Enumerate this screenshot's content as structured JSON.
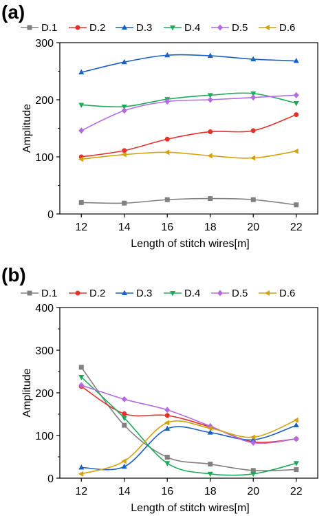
{
  "chart_data": [
    {
      "type": "line",
      "panel_label": "(a)",
      "xlabel": "Length of stitch wires[m]",
      "ylabel": "Amplitude",
      "x": [
        12,
        14,
        16,
        18,
        20,
        22
      ],
      "xticks": [
        "12",
        "14",
        "16",
        "18",
        "20",
        "22"
      ],
      "yticks": [
        "0",
        "100",
        "200",
        "300"
      ],
      "xlim": [
        11,
        23
      ],
      "ylim": [
        0,
        300
      ],
      "grid": false,
      "legend": "top",
      "series": [
        {
          "name": "D.1",
          "color": "#808080",
          "marker": "square",
          "values": [
            20,
            19,
            25,
            27,
            25,
            16
          ]
        },
        {
          "name": "D.2",
          "color": "#e8302a",
          "marker": "circle",
          "values": [
            100,
            111,
            131,
            144,
            146,
            174
          ]
        },
        {
          "name": "D.3",
          "color": "#1a5fc4",
          "marker": "triangle-up",
          "values": [
            248,
            266,
            278,
            277,
            271,
            268
          ]
        },
        {
          "name": "D.4",
          "color": "#1eaa5a",
          "marker": "triangle-down",
          "values": [
            191,
            188,
            201,
            208,
            211,
            194
          ]
        },
        {
          "name": "D.5",
          "color": "#b36be0",
          "marker": "diamond",
          "values": [
            146,
            181,
            197,
            200,
            204,
            208
          ]
        },
        {
          "name": "D.6",
          "color": "#d4a20c",
          "marker": "triangle-left",
          "values": [
            96,
            104,
            108,
            102,
            98,
            110
          ]
        }
      ]
    },
    {
      "type": "line",
      "panel_label": "(b)",
      "xlabel": "Length of stitch wires[m]",
      "ylabel": "Amplitude",
      "x": [
        12,
        14,
        16,
        18,
        20,
        22
      ],
      "xticks": [
        "12",
        "14",
        "16",
        "18",
        "20",
        "22"
      ],
      "yticks": [
        "0",
        "100",
        "200",
        "300",
        "400"
      ],
      "xlim": [
        11,
        23
      ],
      "ylim": [
        0,
        400
      ],
      "grid": false,
      "legend": "top",
      "series": [
        {
          "name": "D.1",
          "color": "#808080",
          "marker": "square",
          "values": [
            260,
            124,
            49,
            33,
            18,
            20
          ]
        },
        {
          "name": "D.2",
          "color": "#e8302a",
          "marker": "circle",
          "values": [
            215,
            151,
            147,
            120,
            85,
            92
          ]
        },
        {
          "name": "D.3",
          "color": "#1a5fc4",
          "marker": "triangle-up",
          "values": [
            25,
            27,
            116,
            107,
            90,
            124
          ]
        },
        {
          "name": "D.4",
          "color": "#1eaa5a",
          "marker": "triangle-down",
          "values": [
            237,
            141,
            35,
            10,
            10,
            35
          ]
        },
        {
          "name": "D.5",
          "color": "#b36be0",
          "marker": "diamond",
          "values": [
            218,
            185,
            160,
            122,
            83,
            92
          ]
        },
        {
          "name": "D.6",
          "color": "#d4a20c",
          "marker": "triangle-left",
          "values": [
            10,
            40,
            130,
            117,
            96,
            136
          ]
        }
      ]
    }
  ]
}
